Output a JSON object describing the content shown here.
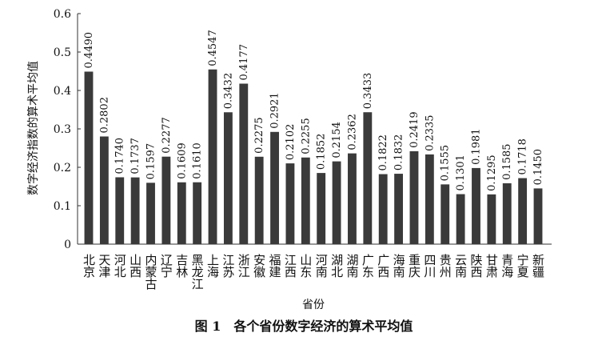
{
  "chart_data": {
    "type": "bar",
    "y_label": "数字经济指数的算术平均值",
    "x_label": "省份",
    "caption": "图 1　各个省份数字经济的算术平均值",
    "categories": [
      "北京",
      "天津",
      "河北",
      "山西",
      "内蒙古",
      "辽宁",
      "吉林",
      "黑龙江",
      "上海",
      "江苏",
      "浙江",
      "安徽",
      "福建",
      "江西",
      "山东",
      "河南",
      "湖北",
      "湖南",
      "广东",
      "广西",
      "海南",
      "重庆",
      "四川",
      "贵州",
      "云南",
      "陕西",
      "甘肃",
      "青海",
      "宁夏",
      "新疆"
    ],
    "values": [
      0.449,
      0.2802,
      0.174,
      0.1737,
      0.1597,
      0.2277,
      0.1609,
      0.161,
      0.4547,
      0.3432,
      0.4177,
      0.2275,
      0.2921,
      0.2102,
      0.2255,
      0.1852,
      0.2154,
      0.2362,
      0.3433,
      0.1822,
      0.1832,
      0.2419,
      0.2335,
      0.1555,
      0.1301,
      0.1981,
      0.1295,
      0.1585,
      0.1718,
      0.145
    ],
    "value_labels": [
      "0.4490",
      "0.2802",
      "0.1740",
      "0.1737",
      "0.1597",
      "0.2277",
      "0.1609",
      "0.1610",
      "0.4547",
      "0.3432",
      "0.4177",
      "0.2275",
      "0.2921",
      "0.2102",
      "0.2255",
      "0.1852",
      "0.2154",
      "0.2362",
      "0.3433",
      "0.1822",
      "0.1832",
      "0.2419",
      "0.2335",
      "0.1555",
      "0.1301",
      "0.1981",
      "0.1295",
      "0.1585",
      "0.1718",
      "0.1450"
    ],
    "color": "#3a3a3a",
    "ylim": [
      0,
      0.6
    ],
    "yticks": [
      0,
      0.1,
      0.2,
      0.3,
      0.4,
      0.5,
      0.6
    ],
    "grid": false
  }
}
